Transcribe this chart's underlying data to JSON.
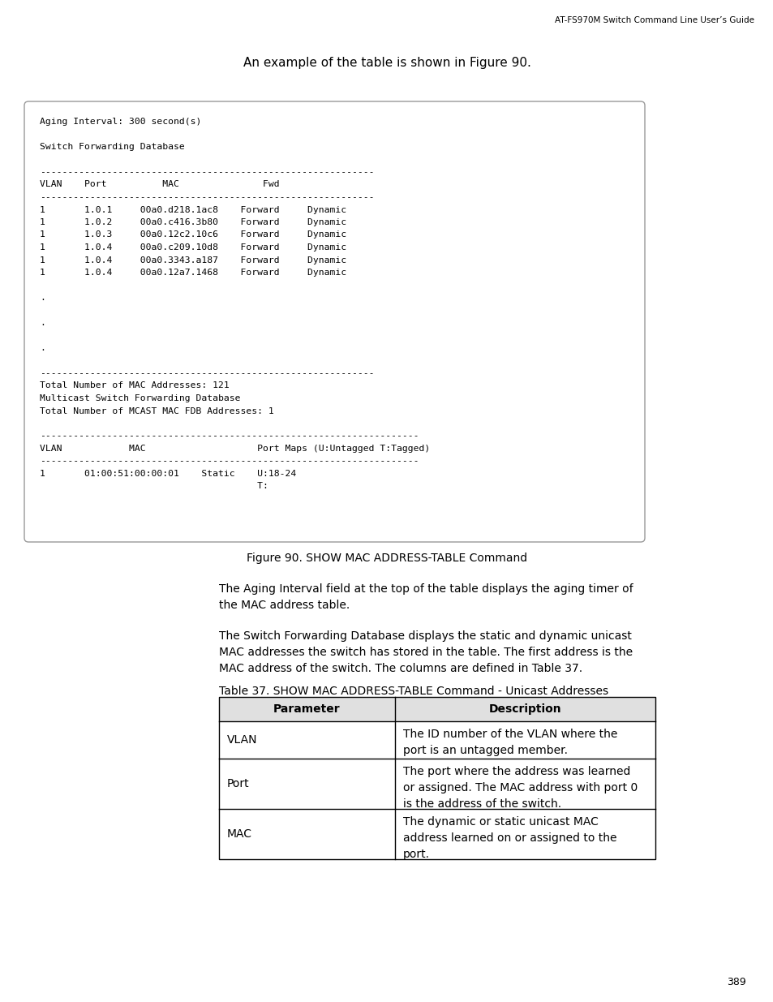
{
  "header_text": "AT-FS970M Switch Command Line User’s Guide",
  "intro_text": "An example of the table is shown in Figure 90.",
  "terminal_lines": [
    "Aging Interval: 300 second(s)",
    "",
    "Switch Forwarding Database",
    "",
    "------------------------------------------------------------",
    "VLAN    Port          MAC               Fwd",
    "------------------------------------------------------------",
    "1       1.0.1     00a0.d218.1ac8    Forward     Dynamic",
    "1       1.0.2     00a0.c416.3b80    Forward     Dynamic",
    "1       1.0.3     00a0.12c2.10c6    Forward     Dynamic",
    "1       1.0.4     00a0.c209.10d8    Forward     Dynamic",
    "1       1.0.4     00a0.3343.a187    Forward     Dynamic",
    "1       1.0.4     00a0.12a7.1468    Forward     Dynamic",
    "",
    ".",
    "",
    ".",
    "",
    ".",
    "",
    "------------------------------------------------------------",
    "Total Number of MAC Addresses: 121",
    "Multicast Switch Forwarding Database",
    "Total Number of MCAST MAC FDB Addresses: 1",
    "",
    "--------------------------------------------------------------------",
    "VLAN            MAC                    Port Maps (U:Untagged T:Tagged)",
    "--------------------------------------------------------------------",
    "1       01:00:51:00:00:01    Static    U:18-24",
    "                                       T:"
  ],
  "figure_caption": "Figure 90. SHOW MAC ADDRESS-TABLE Command",
  "para1": "The Aging Interval field at the top of the table displays the aging timer of\nthe MAC address table.",
  "para2": "The Switch Forwarding Database displays the static and dynamic unicast\nMAC addresses the switch has stored in the table. The first address is the\nMAC address of the switch. The columns are defined in Table 37.",
  "table_title": "Table 37. SHOW MAC ADDRESS-TABLE Command - Unicast Addresses",
  "table_headers": [
    "Parameter",
    "Description"
  ],
  "table_rows": [
    [
      "VLAN",
      "The ID number of the VLAN where the\nport is an untagged member."
    ],
    [
      "Port",
      "The port where the address was learned\nor assigned. The MAC address with port 0\nis the address of the switch."
    ],
    [
      "MAC",
      "The dynamic or static unicast MAC\naddress learned on or assigned to the\nport."
    ]
  ],
  "page_number": "389",
  "bg_color": "#ffffff",
  "terminal_bg": "#ffffff",
  "terminal_border": "#999999",
  "table_border": "#000000",
  "table_header_bg": "#e0e0e0",
  "text_color": "#000000"
}
